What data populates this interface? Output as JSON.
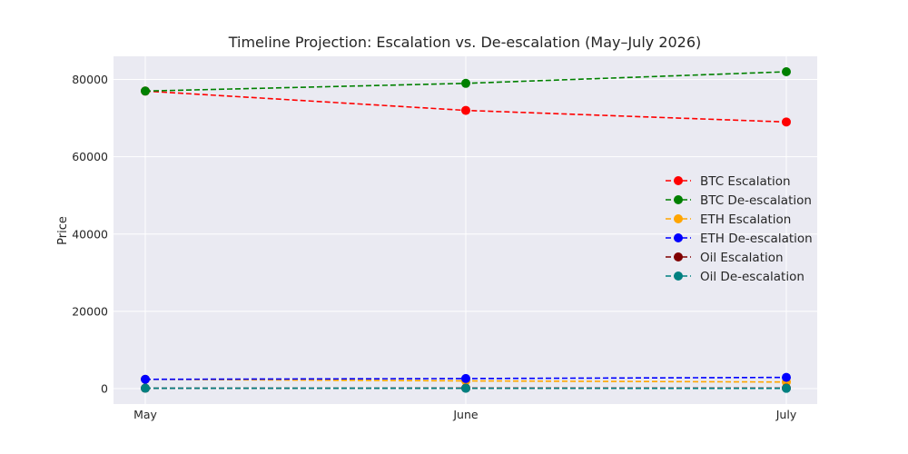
{
  "chart_data": {
    "type": "line",
    "title": "Timeline Projection: Escalation vs. De-escalation (May–July 2026)",
    "xlabel": "",
    "ylabel": "Price",
    "categories": [
      "May",
      "June",
      "July"
    ],
    "ylim": [
      -4000,
      86000
    ],
    "yticks": [
      0,
      20000,
      40000,
      60000,
      80000
    ],
    "grid": true,
    "line_style": "dashed",
    "marker": "circle",
    "legend_position": "center-right",
    "series": [
      {
        "name": "BTC Escalation",
        "color": "#ff0000",
        "values": [
          77000,
          72000,
          69000
        ]
      },
      {
        "name": "BTC De-escalation",
        "color": "#008000",
        "values": [
          77000,
          79000,
          82000
        ]
      },
      {
        "name": "ETH Escalation",
        "color": "#ffa500",
        "values": [
          2400,
          2000,
          1700
        ]
      },
      {
        "name": "ETH De-escalation",
        "color": "#0000ff",
        "values": [
          2400,
          2600,
          2900
        ]
      },
      {
        "name": "Oil Escalation",
        "color": "#800000",
        "values": [
          100,
          120,
          140
        ]
      },
      {
        "name": "Oil De-escalation",
        "color": "#008080",
        "values": [
          100,
          85,
          75
        ]
      }
    ]
  }
}
